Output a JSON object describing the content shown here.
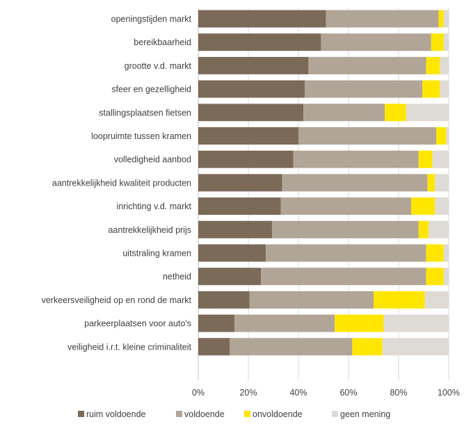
{
  "chart_data": {
    "type": "bar",
    "orientation": "horizontal",
    "stacked": "percent",
    "title": "",
    "xlabel": "",
    "ylabel": "",
    "xlim": [
      0,
      100
    ],
    "x_ticks": [
      "0%",
      "20%",
      "40%",
      "60%",
      "80%",
      "100%"
    ],
    "grid": "vertical",
    "legend_position": "bottom",
    "categories": [
      "openingstijden markt",
      "bereikbaarheid",
      "grootte v.d. markt",
      "sfeer en gezelligheid",
      "stallingsplaatsen fietsen",
      "loopruimte tussen kramen",
      "volledigheid aanbod",
      "aantrekkelijkheid kwaliteit producten",
      "inrichting v.d. markt",
      "aantrekkelijkheid prijs",
      "uitstraling kramen",
      "netheid",
      "verkeersveiligheid op en rond de markt",
      "parkeerplaatsen voor auto's",
      "veiligheid i.r.t. kleine criminaliteit"
    ],
    "series": [
      {
        "name": "ruim voldoende",
        "color": "#7b6a58",
        "values": [
          51,
          49,
          44,
          42.5,
          42,
          40,
          38,
          33.5,
          33,
          29.5,
          27,
          25,
          20.5,
          14.5,
          12.5
        ]
      },
      {
        "name": "voldoende",
        "color": "#b1a597",
        "values": [
          45,
          44,
          47,
          47,
          32.5,
          55,
          50,
          58,
          52,
          58.5,
          64,
          66,
          49.5,
          40,
          49
        ]
      },
      {
        "name": "onvoldoende",
        "color": "#ffe600",
        "values": [
          2,
          5,
          5.5,
          7,
          8.5,
          4,
          5.5,
          3,
          9.5,
          4,
          7,
          7,
          20.5,
          19.5,
          12
        ]
      },
      {
        "name": "geen mening",
        "color": "#dedbd6",
        "values": [
          2,
          2,
          3.5,
          3.5,
          17,
          1,
          6.5,
          5.5,
          5.5,
          8,
          2,
          2,
          9.5,
          26,
          26.5
        ]
      }
    ]
  }
}
